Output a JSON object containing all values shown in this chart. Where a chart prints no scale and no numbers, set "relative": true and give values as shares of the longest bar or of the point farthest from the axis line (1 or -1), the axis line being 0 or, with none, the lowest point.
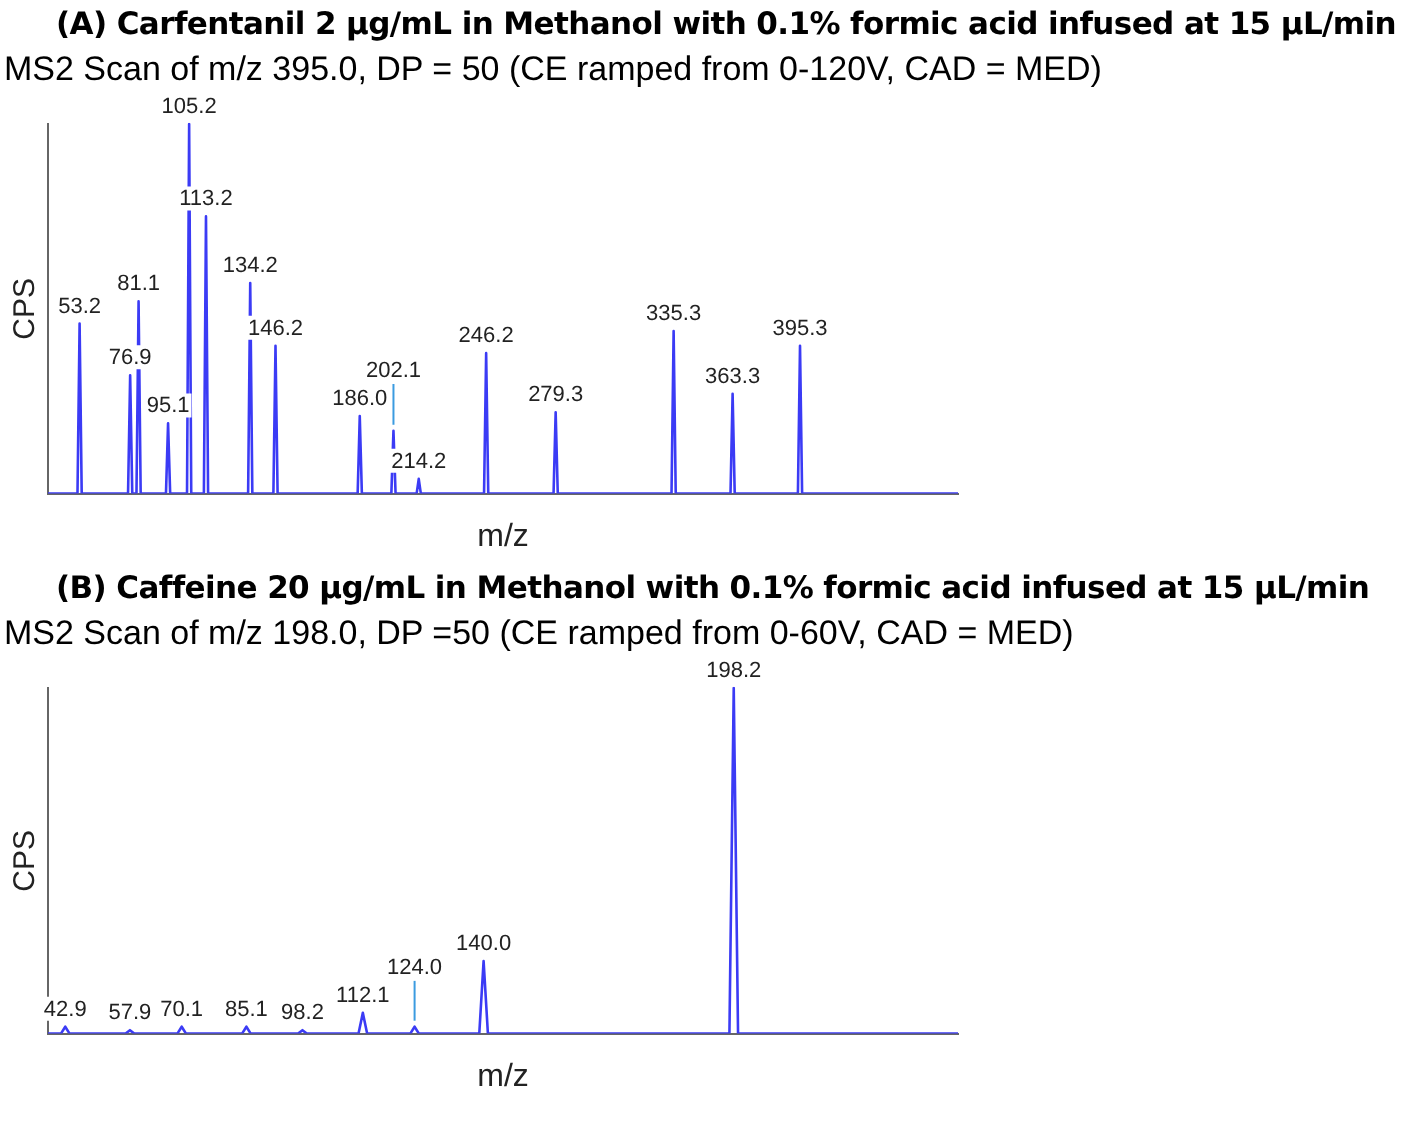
{
  "chart_data": [
    {
      "type": "line",
      "title": "(A) Carfentanil 2 µg/mL in Methanol with 0.1% formic acid infused at 15 µL/min",
      "subtitle": "MS2 Scan of m/z 395.0, DP = 50 (CE ramped from 0-120V, CAD = MED)",
      "xlabel": "m/z",
      "ylabel": "CPS",
      "relative": true,
      "categories": [
        null,
        null,
        null,
        null,
        null,
        null,
        null,
        null,
        null,
        null,
        null,
        null,
        null,
        null,
        null,
        null,
        null,
        null,
        null,
        null,
        null,
        null,
        null,
        null,
        null,
        null,
        null,
        null,
        null,
        null,
        null,
        null,
        null,
        null,
        null,
        null,
        null,
        null,
        null,
        null,
        null,
        null,
        null,
        null,
        null,
        null,
        null,
        null,
        null,
        null,
        null,
        null,
        null,
        null,
        null,
        null,
        null,
        null,
        null,
        null,
        null,
        null,
        null,
        null,
        null,
        null,
        null,
        null,
        null,
        null,
        null,
        null,
        null,
        null,
        null,
        null,
        null,
        null,
        null,
        null,
        null,
        null,
        null,
        null,
        null,
        null,
        null,
        null,
        null,
        null,
        null,
        null,
        null,
        null,
        null,
        null,
        null,
        null,
        null,
        null,
        null,
        null,
        null,
        null,
        null,
        null,
        null,
        null,
        null,
        null,
        null,
        null,
        null,
        null,
        null,
        null,
        null,
        null,
        null,
        null,
        null,
        null,
        null,
        null,
        null,
        null,
        null,
        null,
        null,
        null,
        null,
        null,
        null,
        null,
        null,
        null,
        null,
        null,
        null,
        null,
        null,
        null,
        null,
        null,
        null,
        null,
        null,
        null,
        null,
        null,
        null,
        null,
        null,
        null,
        null,
        null,
        null,
        null,
        null,
        null,
        null,
        null,
        null,
        null,
        null,
        null,
        null,
        null,
        null,
        null,
        null,
        null,
        null,
        null,
        null,
        null,
        null,
        null,
        null,
        null,
        null,
        null,
        null,
        null,
        null,
        null,
        null,
        null,
        null,
        null,
        null,
        null,
        null,
        null,
        null,
        null,
        null,
        null,
        null,
        null,
        null,
        null,
        null,
        null,
        null,
        null,
        null,
        null,
        null,
        null,
        null,
        null,
        null,
        null,
        null,
        null,
        null,
        null,
        null,
        null,
        null,
        null,
        null,
        null,
        null,
        null,
        null,
        null,
        null,
        null,
        null,
        null,
        null,
        null,
        null,
        null,
        null,
        null,
        null,
        null,
        null,
        null,
        null,
        null,
        null,
        null,
        null,
        null,
        null,
        null,
        null,
        null,
        null,
        null,
        null,
        null,
        null,
        null,
        null,
        null,
        null,
        null,
        null,
        null,
        null,
        null,
        null,
        null,
        null,
        null,
        null,
        null,
        null,
        null,
        null,
        null,
        null,
        null,
        null,
        null,
        null,
        null,
        null,
        null,
        null,
        null,
        null,
        null,
        null,
        null,
        null,
        null,
        null,
        null,
        null,
        null,
        null,
        null,
        null,
        null,
        null,
        null,
        null,
        null,
        null,
        null,
        null,
        null,
        null,
        null,
        null,
        null,
        null,
        null,
        null,
        null,
        null,
        null,
        null,
        null,
        null,
        null,
        null,
        null,
        null,
        null,
        null,
        null,
        null,
        null,
        null,
        null,
        null,
        null,
        null,
        null,
        null,
        null,
        null,
        null,
        null,
        null,
        null,
        null,
        null,
        null,
        null,
        null,
        null,
        null,
        null,
        null,
        null,
        null,
        null,
        null,
        null,
        null,
        null,
        null,
        null,
        null,
        null,
        null,
        null,
        null,
        null,
        null,
        null,
        null,
        null,
        null,
        null,
        null,
        null,
        null,
        null,
        null,
        null,
        null,
        null,
        null,
        null,
        null,
        null,
        null,
        null,
        null,
        null,
        null,
        null,
        null,
        null,
        null,
        null,
        null,
        null,
        null,
        null,
        null,
        null,
        null,
        null,
        null,
        null,
        null,
        null,
        null,
        null,
        null,
        null,
        null,
        null,
        null,
        null,
        null,
        null,
        null,
        null,
        null,
        null,
        null,
        null,
        null,
        null,
        null,
        null,
        null,
        null,
        null,
        null,
        null,
        null
      ],
      "values": [
        0,
        0,
        0,
        0,
        0,
        0,
        0,
        0,
        0,
        0,
        0,
        0,
        0,
        0,
        0,
        0.46,
        0,
        0,
        0,
        0,
        0,
        0,
        0,
        0,
        0,
        0,
        0,
        0,
        0,
        0,
        0,
        0,
        0,
        0,
        0,
        0,
        0,
        0,
        0,
        0.32,
        0,
        0,
        0,
        0.52,
        0,
        0,
        0,
        0,
        0,
        0,
        0,
        0,
        0,
        0,
        0,
        0,
        0,
        0.19,
        0,
        0,
        0,
        0,
        0,
        0,
        0,
        0,
        0,
        1,
        0,
        0,
        0,
        0,
        0,
        0,
        0,
        0.75,
        0,
        0,
        0,
        0,
        0,
        0,
        0,
        0,
        0,
        0,
        0,
        0,
        0,
        0,
        0,
        0,
        0,
        0,
        0,
        0,
        0.57,
        0,
        0,
        0,
        0,
        0,
        0,
        0,
        0,
        0,
        0,
        0,
        0.4,
        0,
        0,
        0,
        0,
        0,
        0,
        0,
        0,
        0,
        0,
        0,
        0,
        0,
        0,
        0,
        0,
        0,
        0,
        0,
        0,
        0,
        0,
        0,
        0,
        0,
        0,
        0,
        0,
        0,
        0,
        0,
        0,
        0,
        0,
        0,
        0,
        0,
        0,
        0,
        0.21,
        0,
        0,
        0,
        0,
        0,
        0,
        0,
        0,
        0,
        0,
        0,
        0,
        0,
        0,
        0,
        0.17,
        0,
        0,
        0,
        0,
        0,
        0,
        0,
        0,
        0,
        0,
        0,
        0.04,
        0,
        0,
        0,
        0,
        0,
        0,
        0,
        0,
        0,
        0,
        0,
        0,
        0,
        0,
        0,
        0,
        0,
        0,
        0,
        0,
        0,
        0,
        0,
        0,
        0,
        0,
        0,
        0,
        0,
        0,
        0,
        0.38,
        0,
        0,
        0,
        0,
        0,
        0,
        0,
        0,
        0,
        0,
        0,
        0,
        0,
        0,
        0,
        0,
        0,
        0,
        0,
        0,
        0,
        0,
        0,
        0,
        0,
        0,
        0,
        0,
        0,
        0,
        0,
        0,
        0.22,
        0,
        0,
        0,
        0,
        0,
        0,
        0,
        0,
        0,
        0,
        0,
        0,
        0,
        0,
        0,
        0,
        0,
        0,
        0,
        0,
        0,
        0,
        0,
        0,
        0,
        0,
        0,
        0,
        0,
        0,
        0,
        0,
        0,
        0,
        0,
        0,
        0,
        0,
        0,
        0,
        0,
        0,
        0,
        0,
        0,
        0,
        0,
        0,
        0,
        0,
        0,
        0,
        0,
        0,
        0,
        0.44,
        0,
        0,
        0,
        0,
        0,
        0,
        0,
        0,
        0,
        0,
        0,
        0,
        0,
        0,
        0,
        0,
        0,
        0,
        0,
        0,
        0,
        0,
        0,
        0,
        0,
        0,
        0,
        0.27,
        0,
        0,
        0,
        0,
        0,
        0,
        0,
        0,
        0,
        0,
        0,
        0,
        0,
        0,
        0,
        0,
        0,
        0,
        0,
        0,
        0,
        0,
        0,
        0,
        0,
        0,
        0,
        0,
        0,
        0,
        0,
        0.4,
        0,
        0,
        0,
        0,
        0,
        0,
        0,
        0,
        0,
        0,
        0,
        0,
        0,
        0,
        0,
        0,
        0,
        0,
        0,
        0,
        0,
        0,
        0,
        0,
        0,
        0,
        0,
        0,
        0,
        0,
        0,
        0,
        0,
        0,
        0,
        0,
        0,
        0,
        0,
        0,
        0,
        0,
        0,
        0,
        0,
        0,
        0,
        0,
        0,
        0,
        0,
        0,
        0,
        0,
        0,
        0,
        0,
        0,
        0,
        0,
        0,
        0,
        0,
        0,
        0,
        0,
        0,
        0,
        0,
        0,
        0,
        0,
        0,
        0,
        0
      ],
      "color": "#3b3bf5",
      "annotations": [
        {
          "text": "53.2",
          "y": 0.46
        },
        {
          "text": "76.9",
          "y": 0.32
        },
        {
          "text": "81.1",
          "y": 0.52
        },
        {
          "text": "95.1",
          "y": 0.19
        },
        {
          "text": "105.2",
          "y": 1
        },
        {
          "text": "113.2",
          "y": 0.75
        },
        {
          "text": "134.2",
          "y": 0.57
        },
        {
          "text": "146.2",
          "y": 0.4
        },
        {
          "text": "186.0",
          "y": 0.21
        },
        {
          "text": "202.1",
          "y": 0.17
        },
        {
          "text": "214.2",
          "y": 0.04
        },
        {
          "text": "246.2",
          "y": 0.38
        },
        {
          "text": "279.3",
          "y": 0.22
        },
        {
          "text": "335.3",
          "y": 0.44
        },
        {
          "text": "363.3",
          "y": 0.27
        },
        {
          "text": "395.3",
          "y": 0.4
        }
      ]
    },
    {
      "type": "line",
      "title": "(B) Caffeine 20 µg/mL in Methanol with 0.1% formic acid infused at 15 µL/min",
      "subtitle": "MS2 Scan of m/z 198.0, DP =50 (CE ramped from 0-60V, CAD = MED)",
      "xlabel": "m/z",
      "ylabel": "CPS",
      "relative": true,
      "categories": [
        null,
        null,
        null,
        null,
        null,
        null,
        null,
        null,
        null,
        null,
        null,
        null,
        null,
        null,
        null,
        null,
        null,
        null,
        null,
        null,
        null,
        null,
        null,
        null,
        null,
        null,
        null,
        null,
        null,
        null,
        null,
        null,
        null,
        null,
        null,
        null,
        null,
        null,
        null,
        null,
        null,
        null,
        null,
        null,
        null,
        null,
        null,
        null,
        null,
        null,
        null,
        null,
        null,
        null,
        null,
        null,
        null,
        null,
        null,
        null,
        null,
        null,
        null,
        null,
        null,
        null,
        null,
        null,
        null,
        null,
        null,
        null,
        null,
        null,
        null,
        null,
        null,
        null,
        null,
        null,
        null,
        null,
        null,
        null,
        null,
        null,
        null,
        null,
        null,
        null,
        null,
        null,
        null,
        null,
        null,
        null,
        null,
        null,
        null,
        null,
        null,
        null,
        null,
        null,
        null,
        null,
        null,
        null,
        null,
        null,
        null,
        null,
        null,
        null,
        null,
        null,
        null,
        null,
        null,
        null,
        null,
        null,
        null,
        null,
        null,
        null,
        null,
        null,
        null,
        null,
        null,
        null,
        null,
        null,
        null,
        null,
        null,
        null,
        null,
        null,
        null,
        null,
        null,
        null,
        null,
        null,
        null,
        null,
        null,
        null,
        null,
        null,
        null,
        null,
        null,
        null,
        null,
        null,
        null,
        null,
        null,
        null,
        null,
        null,
        null,
        null,
        null,
        null,
        null,
        null,
        null,
        null,
        null,
        null,
        null,
        null,
        null,
        null,
        null,
        null,
        null,
        null,
        null,
        null,
        null,
        null,
        null,
        null,
        null,
        null,
        null,
        null,
        null,
        null,
        null,
        null,
        null,
        null,
        null,
        null,
        null,
        null,
        null,
        null,
        null,
        null,
        null,
        null,
        null,
        null,
        null,
        null
      ],
      "values": [
        0,
        0,
        0,
        0,
        0.02,
        0,
        0,
        0,
        0,
        0,
        0,
        0,
        0,
        0,
        0,
        0,
        0,
        0,
        0,
        0.01,
        0,
        0,
        0,
        0,
        0,
        0,
        0,
        0,
        0,
        0,
        0,
        0.02,
        0,
        0,
        0,
        0,
        0,
        0,
        0,
        0,
        0,
        0,
        0,
        0,
        0,
        0,
        0.02,
        0,
        0,
        0,
        0,
        0,
        0,
        0,
        0,
        0,
        0,
        0,
        0,
        0.01,
        0,
        0,
        0,
        0,
        0,
        0,
        0,
        0,
        0,
        0,
        0,
        0,
        0,
        0.06,
        0,
        0,
        0,
        0,
        0,
        0,
        0,
        0,
        0,
        0,
        0,
        0.02,
        0,
        0,
        0,
        0,
        0,
        0,
        0,
        0,
        0,
        0,
        0,
        0,
        0,
        0,
        0,
        0.21,
        0,
        0,
        0,
        0,
        0,
        0,
        0,
        0,
        0,
        0,
        0,
        0,
        0,
        0,
        0,
        0,
        0,
        0,
        0,
        0,
        0,
        0,
        0,
        0,
        0,
        0,
        0,
        0,
        0,
        0,
        0,
        0,
        0,
        0,
        0,
        0,
        0,
        0,
        0,
        0,
        0,
        0,
        0,
        0,
        0,
        0,
        0,
        0,
        0,
        0,
        0,
        0,
        0,
        0,
        0,
        0,
        0,
        1,
        0,
        0,
        0,
        0,
        0,
        0,
        0,
        0,
        0,
        0,
        0,
        0,
        0,
        0,
        0,
        0,
        0,
        0,
        0,
        0,
        0,
        0,
        0,
        0,
        0,
        0,
        0,
        0,
        0,
        0,
        0,
        0,
        0,
        0,
        0,
        0,
        0,
        0,
        0,
        0,
        0,
        0,
        0,
        0,
        0,
        0,
        0,
        0,
        0,
        0,
        0,
        0
      ],
      "color": "#3b3bf5",
      "annotations": [
        {
          "text": "42.9",
          "y": 0.02
        },
        {
          "text": "57.9",
          "y": 0.01
        },
        {
          "text": "70.1",
          "y": 0.02
        },
        {
          "text": "85.1",
          "y": 0.02
        },
        {
          "text": "98.2",
          "y": 0.01
        },
        {
          "text": "112.1",
          "y": 0.06
        },
        {
          "text": "124.0",
          "y": 0.02
        },
        {
          "text": "140.0",
          "y": 0.21
        },
        {
          "text": "198.2",
          "y": 1
        }
      ]
    }
  ]
}
